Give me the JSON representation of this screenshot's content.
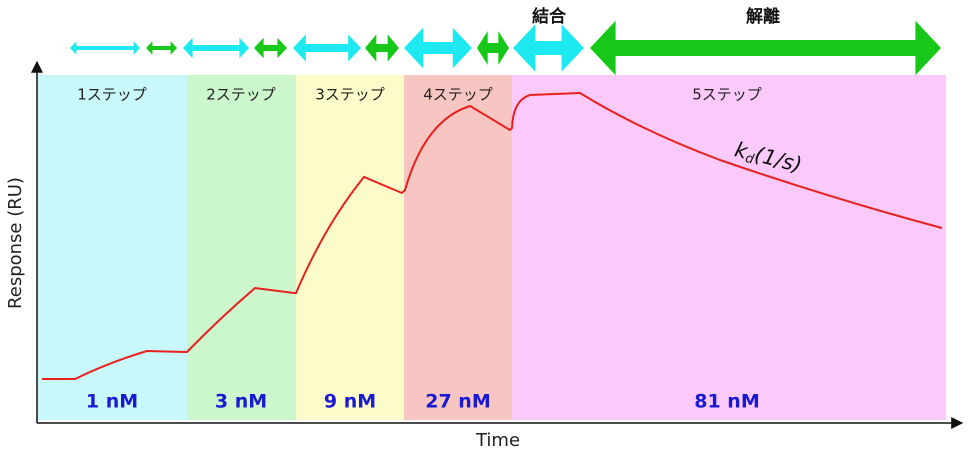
{
  "phases": {
    "association": "結合",
    "dissociation": "解離"
  },
  "steps": [
    {
      "label": "1ステップ",
      "concentration": "1 nM"
    },
    {
      "label": "2ステップ",
      "concentration": "3 nM"
    },
    {
      "label": "3ステップ",
      "concentration": "9 nM"
    },
    {
      "label": "4ステップ",
      "concentration": "27 nM"
    },
    {
      "label": "5ステップ",
      "concentration": "81 nM"
    }
  ],
  "axes": {
    "y_label": "Response (RU)",
    "x_label": "Time"
  },
  "annotation": {
    "symbol": "k",
    "subscript": "d",
    "unit": "(1/s)"
  }
}
